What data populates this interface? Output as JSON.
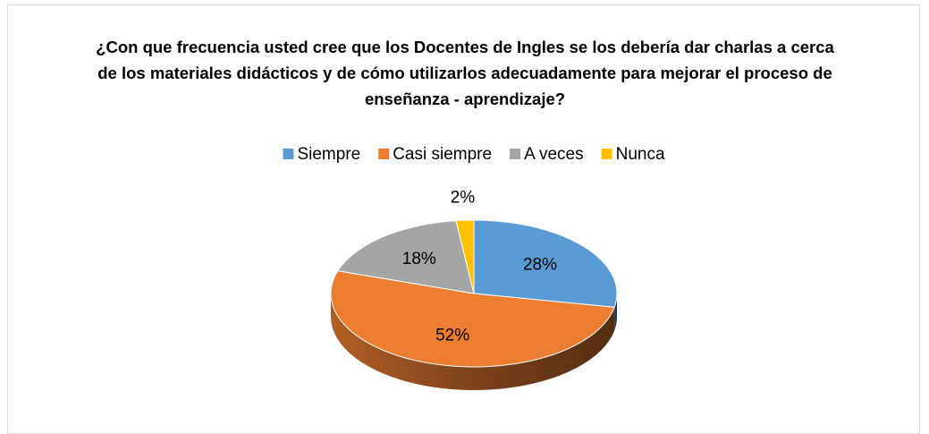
{
  "chart_data": {
    "type": "pie3d",
    "title": "¿Con que frecuencia usted cree que los Docentes de Ingles se los debería dar charlas a cerca de los materiales didácticos y de cómo utilizarlos adecuadamente para mejorar el proceso de enseñanza - aprendizaje?",
    "categories": [
      "Siempre",
      "Casi siempre",
      "A veces",
      "Nunca"
    ],
    "values": [
      28,
      52,
      18,
      2
    ],
    "value_labels": [
      "28%",
      "52%",
      "18%",
      "2%"
    ],
    "colors": [
      "#5b9bd5",
      "#ed7d31",
      "#a5a5a5",
      "#ffc000"
    ],
    "legend": "top"
  }
}
